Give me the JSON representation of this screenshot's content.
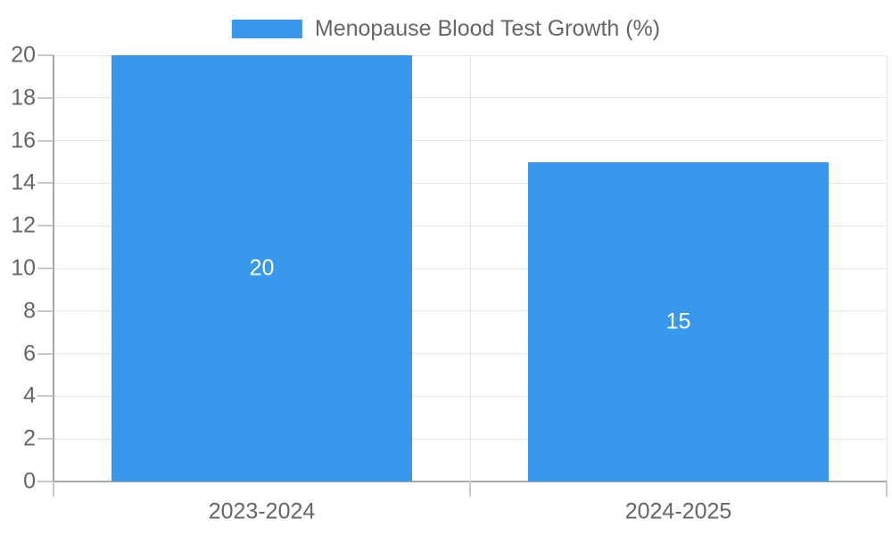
{
  "colors": {
    "bar": "#3898EC",
    "text": "#666666",
    "bar_label_text": "#ffffff",
    "gridline": "#e6e6e6",
    "axis_line": "#a8a8a8",
    "tick_mark": "#c9c9c9",
    "background": "#ffffff"
  },
  "chart_data": {
    "type": "bar",
    "title": "",
    "legend": "Menopause Blood Test Growth (%)",
    "legend_position": "top-center",
    "categories": [
      "2023-2024",
      "2024-2025"
    ],
    "values": [
      20,
      15
    ],
    "bar_value_labels": [
      "20",
      "15"
    ],
    "xlabel": "",
    "ylabel": "",
    "ylim": [
      0,
      20
    ],
    "ytick_step": 2,
    "ytick_labels": [
      "0",
      "2",
      "4",
      "6",
      "8",
      "10",
      "12",
      "14",
      "16",
      "18",
      "20"
    ],
    "grid": true
  }
}
